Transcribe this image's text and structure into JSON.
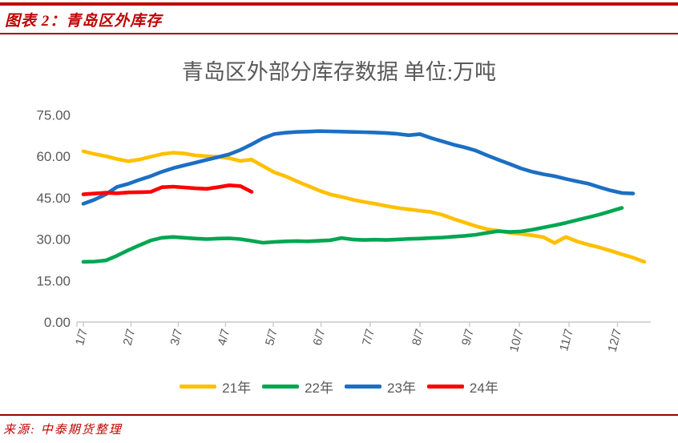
{
  "header": {
    "title": "图表 2：青岛区外库存"
  },
  "footer": {
    "source": "来源: 中泰期货整理"
  },
  "colors": {
    "accent_red": "#C00000",
    "axis_text": "#595959",
    "title_text": "#595959",
    "axis_line": "#C9C9C9"
  },
  "chart_data": {
    "type": "line",
    "title": "青岛区外部分库存数据 单位:万吨",
    "x_tick_labels": [
      "1/7",
      "2/7",
      "3/7",
      "4/7",
      "5/7",
      "6/7",
      "7/7",
      "8/7",
      "9/7",
      "10/7",
      "11/7",
      "12/7"
    ],
    "x_interval": "weekly",
    "y_tick_labels": [
      "0.00",
      "15.00",
      "30.00",
      "45.00",
      "60.00",
      "75.00"
    ],
    "y_tick_values": [
      0,
      15,
      30,
      45,
      60,
      75
    ],
    "ylim": [
      0,
      75
    ],
    "grid": false,
    "legend_position": "bottom",
    "series": [
      {
        "name": "21年",
        "color": "#FFC000",
        "values": [
          61.8,
          60.8,
          60.0,
          59.0,
          58.2,
          58.8,
          59.8,
          60.8,
          61.3,
          61.0,
          60.3,
          60.0,
          59.8,
          59.3,
          58.3,
          58.8,
          56.5,
          54.2,
          52.8,
          51.0,
          49.3,
          47.6,
          46.2,
          45.3,
          44.3,
          43.5,
          42.8,
          42.0,
          41.3,
          40.8,
          40.3,
          39.8,
          38.8,
          37.3,
          36.0,
          34.7,
          33.6,
          33.0,
          32.3,
          31.9,
          31.4,
          30.7,
          28.6,
          30.8,
          29.2,
          28.0,
          27.0,
          25.8,
          24.5,
          23.3,
          21.8
        ]
      },
      {
        "name": "22年",
        "color": "#00A651",
        "values": [
          21.8,
          21.9,
          22.3,
          24.0,
          26.0,
          27.8,
          29.5,
          30.5,
          30.8,
          30.5,
          30.2,
          30.0,
          30.2,
          30.3,
          30.0,
          29.4,
          28.7,
          29.0,
          29.2,
          29.3,
          29.2,
          29.4,
          29.6,
          30.4,
          29.9,
          29.7,
          29.8,
          29.7,
          29.9,
          30.1,
          30.2,
          30.4,
          30.6,
          30.9,
          31.2,
          31.6,
          32.3,
          32.9,
          32.6,
          32.8,
          33.4,
          34.2,
          35.0,
          35.9,
          36.9,
          37.9,
          38.9,
          40.1,
          41.3
        ]
      },
      {
        "name": "23年",
        "color": "#1C6FC2",
        "values": [
          42.8,
          44.3,
          46.2,
          48.9,
          50.0,
          51.5,
          52.8,
          54.4,
          55.7,
          56.7,
          57.7,
          58.7,
          59.7,
          60.7,
          62.3,
          64.3,
          66.5,
          68.0,
          68.5,
          68.8,
          68.9,
          69.1,
          69.0,
          68.9,
          68.8,
          68.7,
          68.6,
          68.4,
          68.1,
          67.6,
          68.0,
          66.6,
          65.4,
          64.2,
          63.2,
          62.0,
          60.3,
          58.7,
          57.2,
          55.6,
          54.4,
          53.5,
          52.8,
          51.8,
          50.9,
          50.1,
          48.8,
          47.6,
          46.7,
          46.5
        ]
      },
      {
        "name": "24年",
        "color": "#FF0000",
        "values": [
          46.2,
          46.5,
          46.8,
          46.6,
          46.9,
          47.0,
          47.1,
          48.8,
          49.0,
          48.7,
          48.4,
          48.2,
          48.8,
          49.5,
          49.2,
          47.1
        ]
      }
    ]
  }
}
